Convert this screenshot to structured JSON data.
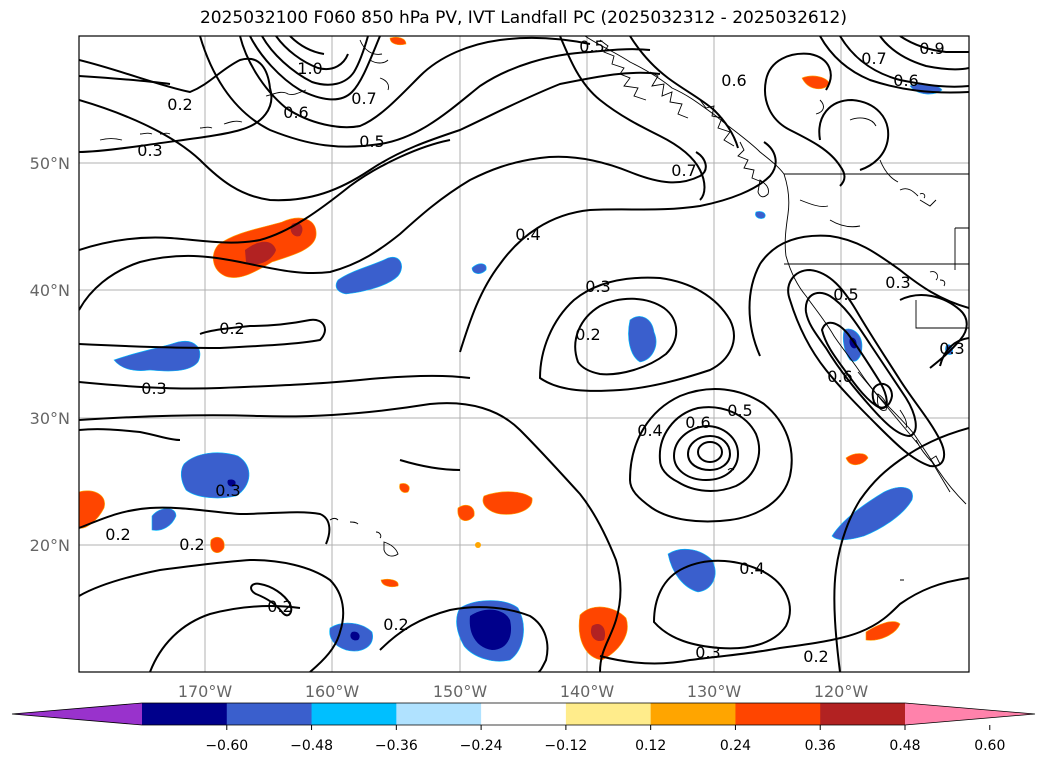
{
  "title": "2025032100 F060 850 hPa PV, IVT Landfall PC (2025032312 - 2025032612)",
  "lat_ticks": [
    "20°N",
    "30°N",
    "40°N",
    "50°N"
  ],
  "lon_ticks": [
    "170°W",
    "160°W",
    "150°W",
    "140°W",
    "130°W",
    "120°W"
  ],
  "colorbar": {
    "colors": [
      "#9932CC",
      "#00008B",
      "#3A5FCD",
      "#00BFFF",
      "#B0E2FF",
      "#FFFFFF",
      "#FFEC8B",
      "#FFA500",
      "#FF4500",
      "#B22222",
      "#FF82AB"
    ],
    "ticks": [
      "−0.60",
      "−0.48",
      "−0.36",
      "−0.24",
      "−0.12",
      "0.12",
      "0.24",
      "0.36",
      "0.48",
      "0.60"
    ]
  },
  "contour_labels": [
    "1.0",
    "0.7",
    "0.6",
    "0.5",
    "0.3",
    "0.2",
    "0.5",
    "0.7",
    "0.6",
    "0.7",
    "0.9",
    "0.6",
    "0.4",
    "0.3",
    "0.2",
    "0.2",
    "0.3",
    "0.3",
    "0.5",
    "0.3",
    "0.6",
    "0.3",
    "0.4",
    "0.6",
    "0.5",
    "0.2",
    "0.2",
    "0.2",
    "0.4",
    "0.2",
    "0.3",
    "0.2"
  ]
}
